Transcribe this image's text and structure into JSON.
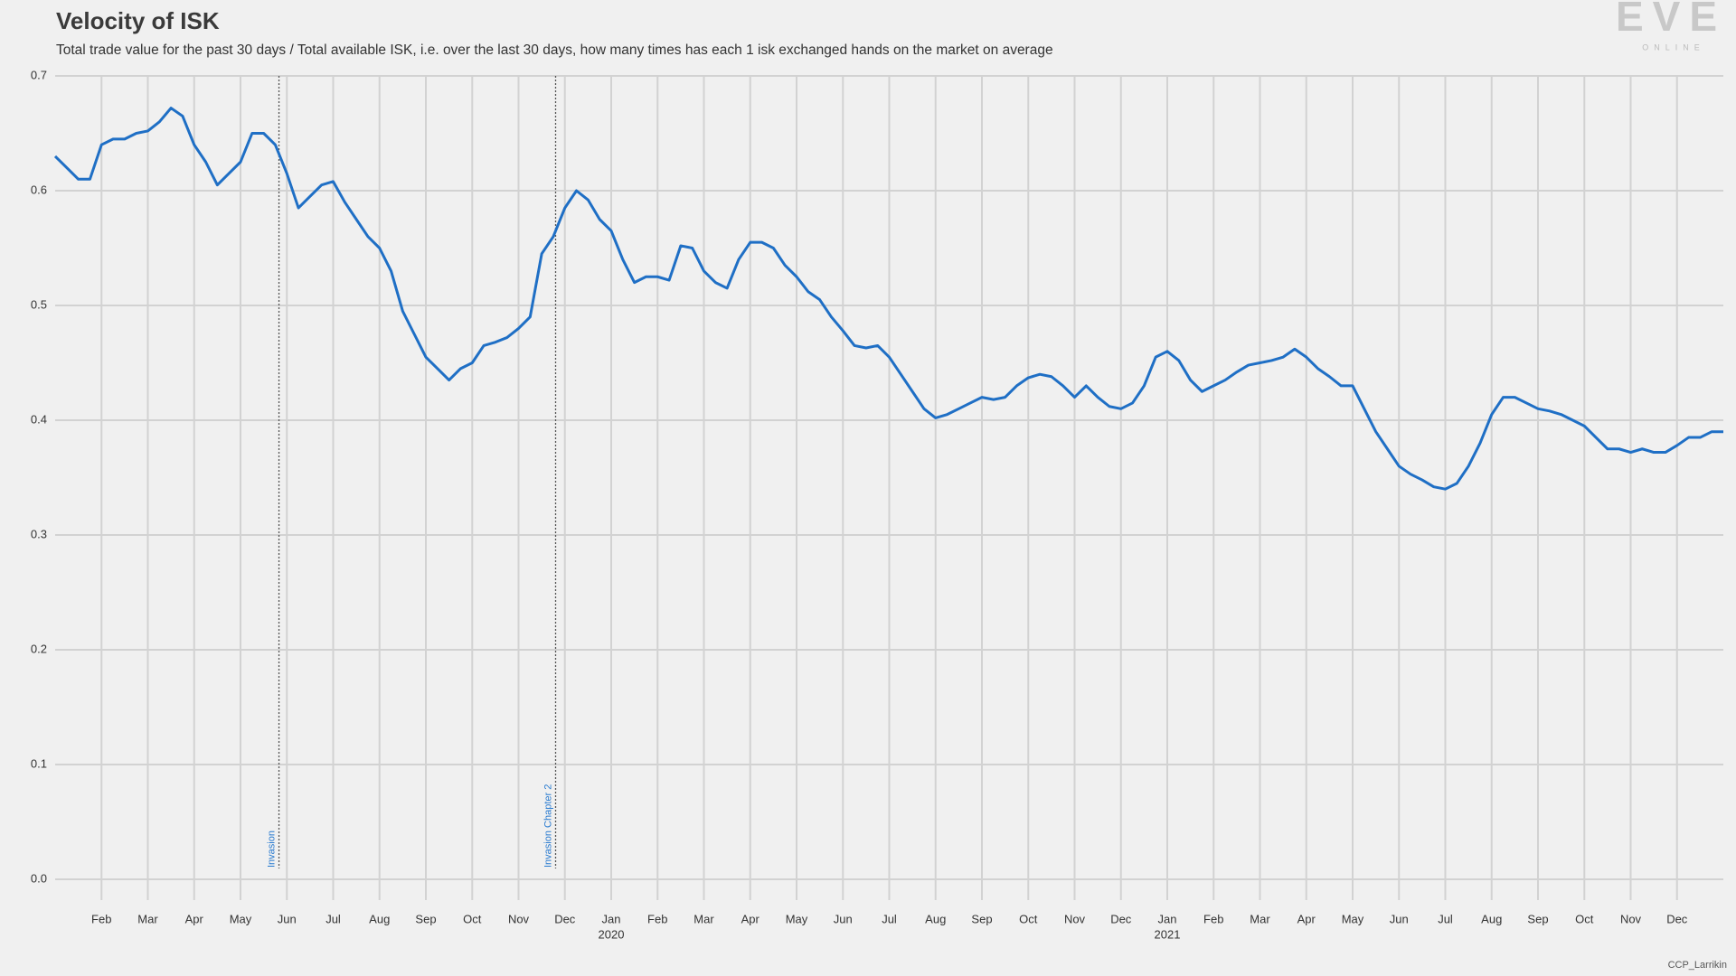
{
  "chart_data": {
    "type": "line",
    "title": "Velocity of ISK",
    "subtitle": "Total trade value for the past 30 days / Total available ISK, i.e. over the last 30 days, how many times has each 1 isk exchanged hands on the market on average",
    "logo": "EVE",
    "logo_sub": "ONLINE",
    "credit": "CCP_Larrikin",
    "grid": true,
    "xlim": [
      0,
      36
    ],
    "ylim": [
      0,
      0.7
    ],
    "yticks": [
      {
        "value": 0,
        "label": "0.0"
      },
      0.1,
      0.2,
      0.3,
      0.4,
      0.5,
      0.6,
      0.7
    ],
    "xticks": [
      {
        "value": 1,
        "label": "Feb"
      },
      {
        "value": 2,
        "label": "Mar"
      },
      {
        "value": 3,
        "label": "Apr"
      },
      {
        "value": 4,
        "label": "May"
      },
      {
        "value": 5,
        "label": "Jun"
      },
      {
        "value": 6,
        "label": "Jul"
      },
      {
        "value": 7,
        "label": "Aug"
      },
      {
        "value": 8,
        "label": "Sep"
      },
      {
        "value": 9,
        "label": "Oct"
      },
      {
        "value": 10,
        "label": "Nov"
      },
      {
        "value": 11,
        "label": "Dec"
      },
      {
        "value": 12,
        "label": "Jan"
      },
      {
        "value": 13,
        "label": "Feb"
      },
      {
        "value": 14,
        "label": "Mar"
      },
      {
        "value": 15,
        "label": "Apr"
      },
      {
        "value": 16,
        "label": "May"
      },
      {
        "value": 17,
        "label": "Jun"
      },
      {
        "value": 18,
        "label": "Jul"
      },
      {
        "value": 19,
        "label": "Aug"
      },
      {
        "value": 20,
        "label": "Sep"
      },
      {
        "value": 21,
        "label": "Oct"
      },
      {
        "value": 22,
        "label": "Nov"
      },
      {
        "value": 23,
        "label": "Dec"
      },
      {
        "value": 24,
        "label": "Jan"
      },
      {
        "value": 25,
        "label": "Feb"
      },
      {
        "value": 26,
        "label": "Mar"
      },
      {
        "value": 27,
        "label": "Apr"
      },
      {
        "value": 28,
        "label": "May"
      },
      {
        "value": 29,
        "label": "Jun"
      },
      {
        "value": 30,
        "label": "Jul"
      },
      {
        "value": 31,
        "label": "Aug"
      },
      {
        "value": 32,
        "label": "Sep"
      },
      {
        "value": 33,
        "label": "Oct"
      },
      {
        "value": 34,
        "label": "Nov"
      },
      {
        "value": 35,
        "label": "Dec"
      }
    ],
    "year_labels": [
      {
        "value": 12,
        "label": "2020"
      },
      {
        "value": 24,
        "label": "2021"
      }
    ],
    "annotations": [
      {
        "x": 4.83,
        "label": "Invasion"
      },
      {
        "x": 10.8,
        "label": "Invasion Chapter 2"
      }
    ],
    "series": [
      {
        "name": "Velocity of ISK",
        "color": "#1f6fc5",
        "x": [
          0,
          0.25,
          0.5,
          0.75,
          1,
          1.25,
          1.5,
          1.75,
          2,
          2.25,
          2.5,
          2.75,
          3,
          3.25,
          3.5,
          3.75,
          4,
          4.25,
          4.5,
          4.75,
          5,
          5.25,
          5.5,
          5.75,
          6,
          6.25,
          6.5,
          6.75,
          7,
          7.25,
          7.5,
          7.75,
          8,
          8.25,
          8.5,
          8.75,
          9,
          9.25,
          9.5,
          9.75,
          10,
          10.25,
          10.5,
          10.75,
          11,
          11.25,
          11.5,
          11.75,
          12,
          12.25,
          12.5,
          12.75,
          13,
          13.25,
          13.5,
          13.75,
          14,
          14.25,
          14.5,
          14.75,
          15,
          15.25,
          15.5,
          15.75,
          16,
          16.25,
          16.5,
          16.75,
          17,
          17.25,
          17.5,
          17.75,
          18,
          18.25,
          18.5,
          18.75,
          19,
          19.25,
          19.5,
          19.75,
          20,
          20.25,
          20.5,
          20.75,
          21,
          21.25,
          21.5,
          21.75,
          22,
          22.25,
          22.5,
          22.75,
          23,
          23.25,
          23.5,
          23.75,
          24,
          24.25,
          24.5,
          24.75,
          25,
          25.25,
          25.5,
          25.75,
          26,
          26.25,
          26.5,
          26.75,
          27,
          27.25,
          27.5,
          27.75,
          28,
          28.25,
          28.5,
          28.75,
          29,
          29.25,
          29.5,
          29.75,
          30,
          30.25,
          30.5,
          30.75,
          31,
          31.25,
          31.5,
          31.75,
          32,
          32.25,
          32.5,
          32.75,
          33,
          33.25,
          33.5,
          33.75,
          34,
          34.25,
          34.5,
          34.75,
          35,
          35.25,
          35.5,
          35.75,
          36
        ],
        "values": [
          0.63,
          0.62,
          0.61,
          0.61,
          0.64,
          0.645,
          0.645,
          0.65,
          0.652,
          0.66,
          0.672,
          0.665,
          0.64,
          0.625,
          0.605,
          0.615,
          0.625,
          0.65,
          0.65,
          0.64,
          0.615,
          0.585,
          0.595,
          0.605,
          0.608,
          0.59,
          0.575,
          0.56,
          0.55,
          0.53,
          0.495,
          0.475,
          0.455,
          0.445,
          0.435,
          0.445,
          0.45,
          0.465,
          0.468,
          0.472,
          0.48,
          0.49,
          0.545,
          0.56,
          0.585,
          0.6,
          0.592,
          0.575,
          0.565,
          0.54,
          0.52,
          0.525,
          0.525,
          0.522,
          0.552,
          0.55,
          0.53,
          0.52,
          0.515,
          0.54,
          0.555,
          0.555,
          0.55,
          0.535,
          0.525,
          0.512,
          0.505,
          0.49,
          0.478,
          0.465,
          0.463,
          0.465,
          0.455,
          0.44,
          0.425,
          0.41,
          0.402,
          0.405,
          0.41,
          0.415,
          0.42,
          0.418,
          0.42,
          0.43,
          0.437,
          0.44,
          0.438,
          0.43,
          0.42,
          0.43,
          0.42,
          0.412,
          0.41,
          0.415,
          0.43,
          0.455,
          0.46,
          0.452,
          0.435,
          0.425,
          0.43,
          0.435,
          0.442,
          0.448,
          0.45,
          0.452,
          0.455,
          0.462,
          0.455,
          0.445,
          0.438,
          0.43,
          0.43,
          0.41,
          0.39,
          0.375,
          0.36,
          0.353,
          0.348,
          0.342,
          0.34,
          0.345,
          0.36,
          0.38,
          0.405,
          0.42,
          0.42,
          0.415,
          0.41,
          0.408,
          0.405,
          0.4,
          0.395,
          0.385,
          0.375,
          0.375,
          0.372,
          0.375,
          0.372,
          0.372,
          0.378,
          0.385,
          0.385,
          0.39,
          0.39
        ]
      }
    ]
  }
}
